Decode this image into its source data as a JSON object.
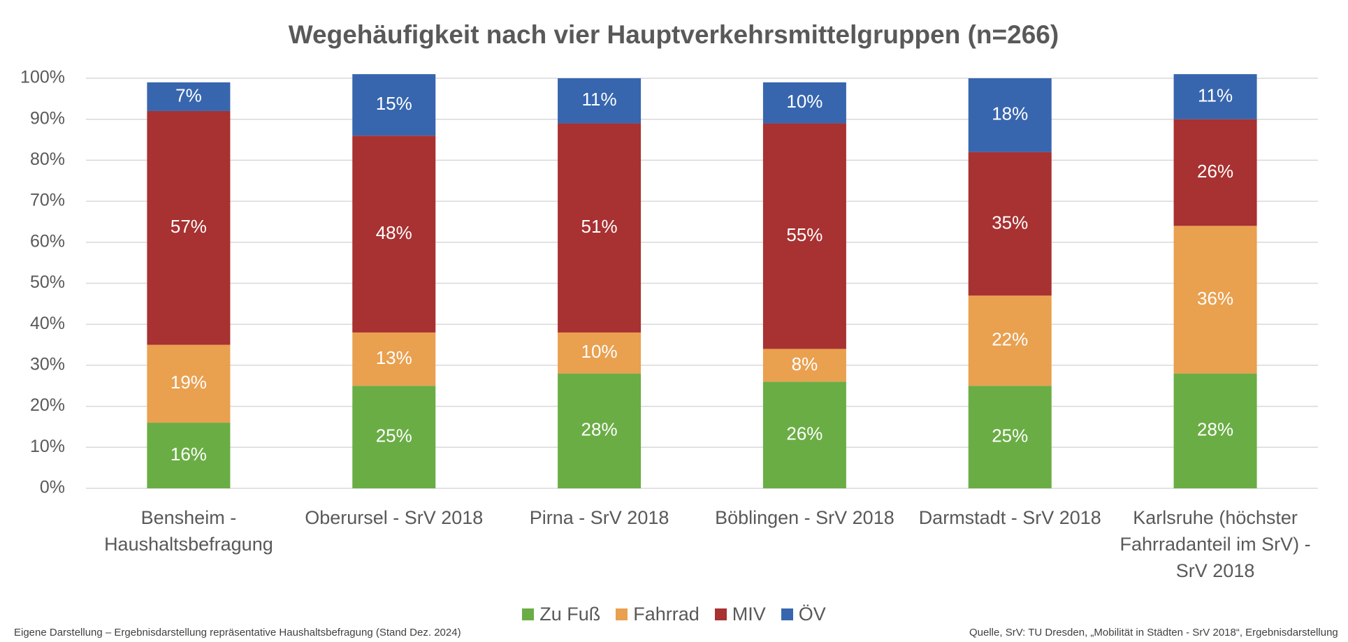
{
  "chart_data": {
    "type": "stacked_bar",
    "title": "Wegehäufigkeit nach vier Hauptverkehrsmittelgruppen (n=266)",
    "categories": [
      "Bensheim - Haushaltsbefragung",
      "Oberursel - SrV 2018",
      "Pirna - SrV 2018",
      "Böblingen - SrV 2018",
      "Darmstadt - SrV 2018",
      "Karlsruhe (höchster Fahrradanteil im SrV) - SrV 2018"
    ],
    "series": [
      {
        "name": "Zu Fuß",
        "color": "#6aad45",
        "values": [
          16,
          25,
          28,
          26,
          25,
          28
        ],
        "value_labels": [
          "16%",
          "25%",
          "28%",
          "26%",
          "25%",
          "28%"
        ]
      },
      {
        "name": "Fahrrad",
        "color": "#e9a04f",
        "values": [
          19,
          13,
          10,
          8,
          22,
          36
        ],
        "value_labels": [
          "19%",
          "13%",
          "10%",
          "8%",
          "22%",
          "36%"
        ]
      },
      {
        "name": "MIV",
        "color": "#a83131",
        "values": [
          57,
          48,
          51,
          55,
          35,
          26
        ],
        "value_labels": [
          "57%",
          "48%",
          "51%",
          "55%",
          "35%",
          "26%"
        ]
      },
      {
        "name": "ÖV",
        "color": "#3766ae",
        "values": [
          7,
          15,
          11,
          10,
          18,
          11
        ],
        "value_labels": [
          "7%",
          "15%",
          "11%",
          "10%",
          "18%",
          "11%"
        ]
      }
    ],
    "ylim": [
      0,
      100
    ],
    "yticks": [
      {
        "value": 0,
        "label": "0%"
      },
      {
        "value": 10,
        "label": "10%"
      },
      {
        "value": 20,
        "label": "20%"
      },
      {
        "value": 30,
        "label": "30%"
      },
      {
        "value": 40,
        "label": "40%"
      },
      {
        "value": 50,
        "label": "50%"
      },
      {
        "value": 60,
        "label": "60%"
      },
      {
        "value": 70,
        "label": "70%"
      },
      {
        "value": 80,
        "label": "80%"
      },
      {
        "value": 90,
        "label": "90%"
      },
      {
        "value": 100,
        "label": "100%"
      }
    ],
    "grid": true,
    "legend": "bottom",
    "notes": [
      "Eigene Darstellung – Ergebnisdarstellung repräsentative Haushaltsbefragung (Stand Dez. 2024)",
      "Quelle, SrV: TU Dresden, „Mobilität in Städten - SrV 2018“, Ergebnisdarstellung"
    ]
  }
}
